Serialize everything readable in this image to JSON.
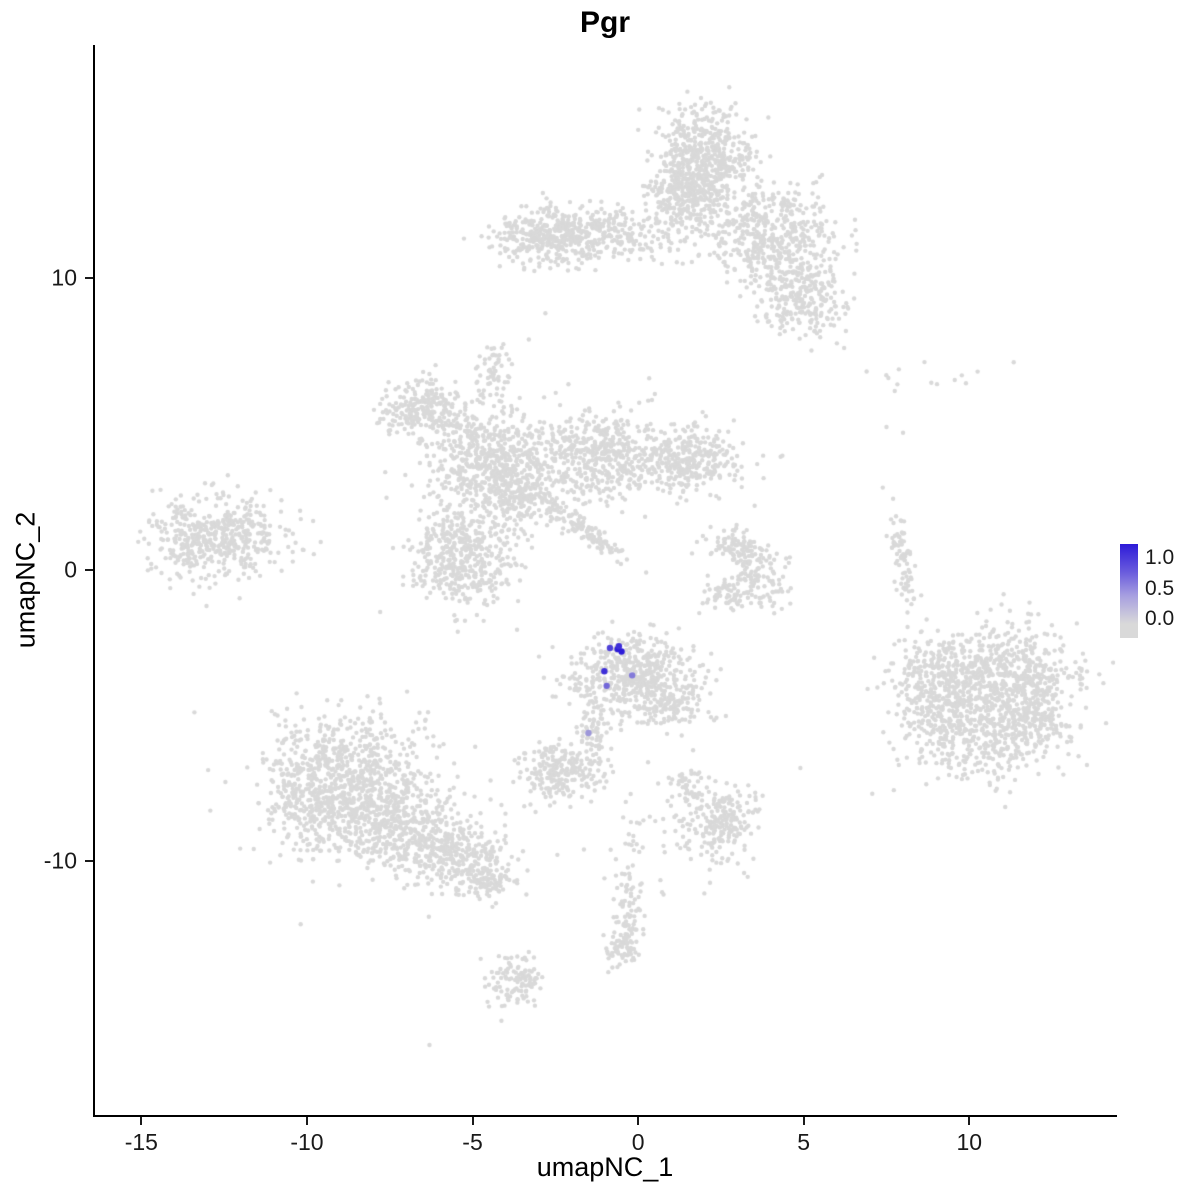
{
  "title": "Pgr",
  "axes": {
    "x_label": "umapNC_1",
    "y_label": "umapNC_2",
    "x_ticks": [
      {
        "v": -15,
        "label": "-15"
      },
      {
        "v": -10,
        "label": "-10"
      },
      {
        "v": -5,
        "label": "-5"
      },
      {
        "v": 0,
        "label": "0"
      },
      {
        "v": 5,
        "label": "5"
      },
      {
        "v": 10,
        "label": "10"
      }
    ],
    "y_ticks": [
      {
        "v": 10,
        "label": "10"
      },
      {
        "v": 0,
        "label": "0"
      },
      {
        "v": -10,
        "label": "-10"
      }
    ]
  },
  "legend": {
    "labels": [
      "1.0",
      "0.5",
      "0.0"
    ],
    "high_color": "#2d1bd8",
    "low_color": "#d9d9d9"
  },
  "chart_data": {
    "type": "scatter",
    "title": "Pgr",
    "xlabel": "umapNC_1",
    "ylabel": "umapNC_2",
    "xlim": [
      -16.4,
      14.4
    ],
    "ylim": [
      -18.7,
      18.0
    ],
    "grid": false,
    "legend_position": "right",
    "color_scale": {
      "low": "#d9d9d9",
      "high": "#2d1bd8",
      "ticks": [
        0.0,
        0.5,
        1.0
      ]
    },
    "point_radius": 2.2,
    "seed": 42,
    "background_clusters": [
      {
        "cx": 1.9,
        "cy": 14.1,
        "sx": 0.75,
        "sy": 0.85,
        "n": 550,
        "rot": 0
      },
      {
        "cx": 1.4,
        "cy": 12.7,
        "sx": 0.55,
        "sy": 0.7,
        "n": 220,
        "rot": 0
      },
      {
        "cx": -1.4,
        "cy": 11.5,
        "sx": 1.3,
        "sy": 0.5,
        "n": 380,
        "rot": 0
      },
      {
        "cx": -2.8,
        "cy": 11.4,
        "sx": 0.7,
        "sy": 0.45,
        "n": 200,
        "rot": 0
      },
      {
        "cx": 4.0,
        "cy": 11.5,
        "sx": 1.0,
        "sy": 0.85,
        "n": 500,
        "rot": -20
      },
      {
        "cx": 4.9,
        "cy": 9.3,
        "sx": 0.7,
        "sy": 0.6,
        "n": 240,
        "rot": -30
      },
      {
        "cx": -6.5,
        "cy": 5.5,
        "sx": 0.68,
        "sy": 0.5,
        "n": 250,
        "rot": 0
      },
      {
        "cx": -4.4,
        "cy": 6.9,
        "sx": 0.3,
        "sy": 0.45,
        "n": 55,
        "rot": 0
      },
      {
        "cx": -4.5,
        "cy": 3.7,
        "sx": 1.0,
        "sy": 0.85,
        "n": 600,
        "rot": 0
      },
      {
        "cx": -1.1,
        "cy": 3.9,
        "sx": 1.0,
        "sy": 0.8,
        "n": 500,
        "rot": 0
      },
      {
        "cx": 1.6,
        "cy": 3.8,
        "sx": 0.8,
        "sy": 0.55,
        "n": 300,
        "rot": 0
      },
      {
        "cx": -5.3,
        "cy": 0.4,
        "sx": 0.8,
        "sy": 0.85,
        "n": 450,
        "rot": 0
      },
      {
        "cx": -3.6,
        "cy": 2.4,
        "sx": 0.5,
        "sy": 0.6,
        "n": 150,
        "rot": 0
      },
      {
        "cx": -1.6,
        "cy": 1.4,
        "sx": 0.85,
        "sy": 0.15,
        "n": 130,
        "rot": -40
      },
      {
        "cx": -12.7,
        "cy": 1.1,
        "sx": 1.05,
        "sy": 0.75,
        "n": 500,
        "rot": 8
      },
      {
        "cx": 3.0,
        "cy": 0.8,
        "sx": 0.5,
        "sy": 0.32,
        "n": 90,
        "rot": -15
      },
      {
        "cx": 3.6,
        "cy": -0.4,
        "sx": 0.42,
        "sy": 0.6,
        "n": 130,
        "rot": 0
      },
      {
        "cx": 2.6,
        "cy": -0.9,
        "sx": 0.3,
        "sy": 0.3,
        "n": 45,
        "rot": 0
      },
      {
        "cx": 8.0,
        "cy": 0.4,
        "sx": 0.16,
        "sy": 0.9,
        "n": 80,
        "rot": 8
      },
      {
        "cx": 10.9,
        "cy": -3.6,
        "sx": 1.1,
        "sy": 0.9,
        "n": 500,
        "rot": 0
      },
      {
        "cx": 10.3,
        "cy": -5.6,
        "sx": 1.2,
        "sy": 0.8,
        "n": 400,
        "rot": 0
      },
      {
        "cx": 11.9,
        "cy": -4.5,
        "sx": 0.6,
        "sy": 0.85,
        "n": 220,
        "rot": 0
      },
      {
        "cx": 9.2,
        "cy": -4.3,
        "sx": 0.7,
        "sy": 0.9,
        "n": 250,
        "rot": 0
      },
      {
        "cx": 8.4,
        "cy": -3.3,
        "sx": 0.4,
        "sy": 0.7,
        "n": 50,
        "rot": 0
      },
      {
        "cx": -0.1,
        "cy": -3.6,
        "sx": 0.95,
        "sy": 0.75,
        "n": 560,
        "rot": 0
      },
      {
        "cx": 1.1,
        "cy": -4.7,
        "sx": 0.4,
        "sy": 0.35,
        "n": 70,
        "rot": 0
      },
      {
        "cx": -1.35,
        "cy": -5.75,
        "sx": 0.2,
        "sy": 0.65,
        "n": 70,
        "rot": 0
      },
      {
        "cx": -2.4,
        "cy": -6.95,
        "sx": 0.55,
        "sy": 0.5,
        "n": 220,
        "rot": 0
      },
      {
        "cx": -8.8,
        "cy": -7.0,
        "sx": 1.2,
        "sy": 1.0,
        "n": 600,
        "rot": 0
      },
      {
        "cx": -7.3,
        "cy": -8.8,
        "sx": 1.0,
        "sy": 0.8,
        "n": 400,
        "rot": -20
      },
      {
        "cx": -5.6,
        "cy": -9.8,
        "sx": 0.9,
        "sy": 0.6,
        "n": 300,
        "rot": -20
      },
      {
        "cx": -9.9,
        "cy": -8.0,
        "sx": 0.6,
        "sy": 0.8,
        "n": 200,
        "rot": 0
      },
      {
        "cx": -8.2,
        "cy": -7.8,
        "sx": 1.9,
        "sy": 1.5,
        "n": 120,
        "rot": 0
      },
      {
        "cx": -4.6,
        "cy": -10.6,
        "sx": 0.45,
        "sy": 0.35,
        "n": 80,
        "rot": 0
      },
      {
        "cx": 2.5,
        "cy": -8.6,
        "sx": 0.55,
        "sy": 0.55,
        "n": 200,
        "rot": 0
      },
      {
        "cx": 1.4,
        "cy": -7.5,
        "sx": 0.35,
        "sy": 0.4,
        "n": 50,
        "rot": 0
      },
      {
        "cx": 0.8,
        "cy": -9.3,
        "sx": 1.1,
        "sy": 0.9,
        "n": 55,
        "rot": 0
      },
      {
        "cx": -0.25,
        "cy": -11.5,
        "sx": 0.25,
        "sy": 0.75,
        "n": 70,
        "rot": 0
      },
      {
        "cx": -0.4,
        "cy": -12.9,
        "sx": 0.3,
        "sy": 0.35,
        "n": 60,
        "rot": 0
      },
      {
        "cx": -3.7,
        "cy": -14.1,
        "sx": 0.4,
        "sy": 0.45,
        "n": 110,
        "rot": 0
      },
      {
        "cx": 8.6,
        "cy": 6.6,
        "sx": 1.1,
        "sy": 0.35,
        "n": 12,
        "rot": 0
      }
    ],
    "singleton_points": [
      [
        -6.3,
        -16.3
      ],
      [
        6.9,
        6.8
      ],
      [
        9.9,
        6.4
      ],
      [
        7.5,
        4.9
      ],
      [
        8.0,
        4.7
      ],
      [
        -2.8,
        8.8
      ],
      [
        -3.3,
        7.9
      ],
      [
        -4.35,
        7.6
      ],
      [
        4.9,
        -6.8
      ],
      [
        0.3,
        -6.6
      ],
      [
        -0.9,
        -13.8
      ],
      [
        2.0,
        -11.1
      ],
      [
        3.2,
        -10.4
      ]
    ],
    "expressing_cells": [
      {
        "x": -0.62,
        "y": -2.72,
        "value": 1.0
      },
      {
        "x": -0.5,
        "y": -2.8,
        "value": 1.0
      },
      {
        "x": -0.58,
        "y": -2.62,
        "value": 0.9
      },
      {
        "x": -0.85,
        "y": -2.68,
        "value": 0.8
      },
      {
        "x": -1.02,
        "y": -3.48,
        "value": 0.9
      },
      {
        "x": -0.18,
        "y": -3.62,
        "value": 0.5
      },
      {
        "x": -0.95,
        "y": -3.98,
        "value": 0.6
      },
      {
        "x": -1.5,
        "y": -5.6,
        "value": 0.35
      }
    ]
  }
}
